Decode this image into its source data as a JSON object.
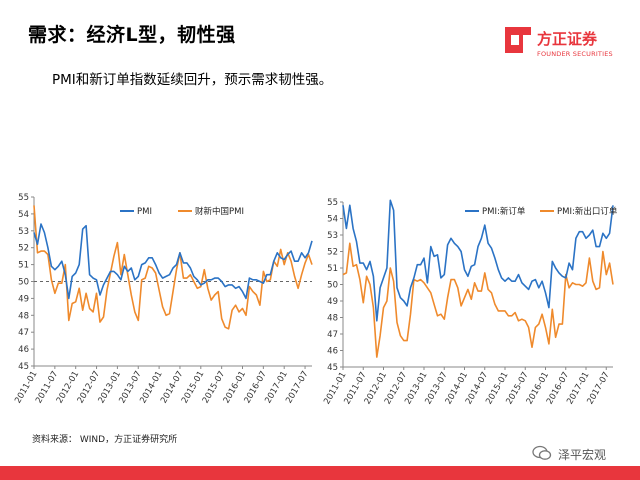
{
  "header": {
    "title": "需求：经济L型，韧性强",
    "subtitle": "PMI和新订单指数延续回升，预示需求韧性强。"
  },
  "logo": {
    "name": "方正证券",
    "subtitle": "FOUNDER SECURITIES",
    "color": "#e8363d"
  },
  "footer": {
    "source": "资料来源： WIND，方正证券研究所",
    "watermark": "泽平宏观"
  },
  "colors": {
    "blue": "#2b73c5",
    "orange": "#ef8a2c",
    "brand_red": "#e8363d"
  },
  "chart_data": [
    {
      "type": "line",
      "title": "",
      "x": [
        "2011-01",
        "2011-02",
        "2011-03",
        "2011-04",
        "2011-05",
        "2011-06",
        "2011-07",
        "2011-08",
        "2011-09",
        "2011-10",
        "2011-11",
        "2011-12",
        "2012-01",
        "2012-02",
        "2012-03",
        "2012-04",
        "2012-05",
        "2012-06",
        "2012-07",
        "2012-08",
        "2012-09",
        "2012-10",
        "2012-11",
        "2012-12",
        "2013-01",
        "2013-02",
        "2013-03",
        "2013-04",
        "2013-05",
        "2013-06",
        "2013-07",
        "2013-08",
        "2013-09",
        "2013-10",
        "2013-11",
        "2013-12",
        "2014-01",
        "2014-02",
        "2014-03",
        "2014-04",
        "2014-05",
        "2014-06",
        "2014-07",
        "2014-08",
        "2014-09",
        "2014-10",
        "2014-11",
        "2014-12",
        "2015-01",
        "2015-02",
        "2015-03",
        "2015-04",
        "2015-05",
        "2015-06",
        "2015-07",
        "2015-08",
        "2015-09",
        "2015-10",
        "2015-11",
        "2015-12",
        "2016-01",
        "2016-02",
        "2016-03",
        "2016-04",
        "2016-05",
        "2016-06",
        "2016-07",
        "2016-08",
        "2016-09",
        "2016-10",
        "2016-11",
        "2016-12",
        "2017-01",
        "2017-02",
        "2017-03",
        "2017-04",
        "2017-05",
        "2017-06",
        "2017-07",
        "2017-08",
        "2017-09"
      ],
      "tick_labels": [
        "2011-01",
        "2011-07",
        "2012-01",
        "2012-07",
        "2013-01",
        "2013-07",
        "2014-01",
        "2014-07",
        "2015-01",
        "2015-07",
        "2016-01",
        "2016-07",
        "2017-01",
        "2017-07"
      ],
      "ylim": [
        45,
        55
      ],
      "yticks": [
        45,
        46,
        47,
        48,
        49,
        50,
        51,
        52,
        53,
        54,
        55
      ],
      "reference_line": 50,
      "series": [
        {
          "name": "PMI",
          "color": "#2b73c5",
          "values": [
            52.9,
            52.2,
            53.4,
            52.9,
            52.0,
            50.9,
            50.7,
            50.9,
            51.2,
            50.4,
            49.0,
            50.3,
            50.5,
            51.0,
            53.1,
            53.3,
            50.4,
            50.2,
            50.1,
            49.2,
            49.8,
            50.2,
            50.6,
            50.6,
            50.4,
            50.1,
            50.9,
            50.6,
            50.8,
            50.1,
            50.3,
            51.0,
            51.1,
            51.4,
            51.4,
            51.0,
            50.5,
            50.2,
            50.3,
            50.4,
            50.8,
            51.0,
            51.7,
            51.1,
            51.1,
            50.8,
            50.3,
            50.1,
            49.8,
            49.9,
            50.1,
            50.1,
            50.2,
            50.2,
            50.0,
            49.7,
            49.8,
            49.8,
            49.6,
            49.7,
            49.4,
            49.0,
            50.2,
            50.1,
            50.1,
            50.0,
            49.9,
            50.4,
            50.4,
            51.2,
            51.7,
            51.4,
            51.3,
            51.6,
            51.8,
            51.2,
            51.2,
            51.7,
            51.4,
            51.7,
            52.4
          ]
        },
        {
          "name": "财新中国PMI",
          "color": "#ef8a2c",
          "values": [
            54.5,
            51.7,
            51.8,
            51.8,
            51.6,
            50.1,
            49.3,
            49.9,
            49.9,
            51.0,
            47.7,
            48.7,
            48.8,
            49.6,
            48.3,
            49.3,
            48.4,
            48.2,
            49.3,
            47.6,
            47.9,
            49.5,
            50.5,
            51.5,
            52.3,
            50.4,
            51.6,
            50.4,
            49.2,
            48.2,
            47.7,
            50.1,
            50.2,
            50.9,
            50.8,
            50.5,
            49.5,
            48.5,
            48.0,
            48.1,
            49.4,
            50.7,
            51.7,
            50.2,
            50.2,
            50.4,
            50.0,
            49.6,
            49.7,
            50.7,
            49.6,
            48.9,
            49.2,
            49.4,
            47.8,
            47.3,
            47.2,
            48.3,
            48.6,
            48.2,
            48.4,
            48.0,
            49.7,
            49.4,
            49.2,
            48.6,
            50.6,
            50.0,
            50.1,
            51.2,
            50.9,
            51.9,
            51.0,
            51.7,
            51.2,
            50.3,
            49.6,
            50.4,
            51.1,
            51.6,
            51.0
          ]
        }
      ]
    },
    {
      "type": "line",
      "title": "",
      "x": [
        "2011-01",
        "2011-02",
        "2011-03",
        "2011-04",
        "2011-05",
        "2011-06",
        "2011-07",
        "2011-08",
        "2011-09",
        "2011-10",
        "2011-11",
        "2011-12",
        "2012-01",
        "2012-02",
        "2012-03",
        "2012-04",
        "2012-05",
        "2012-06",
        "2012-07",
        "2012-08",
        "2012-09",
        "2012-10",
        "2012-11",
        "2012-12",
        "2013-01",
        "2013-02",
        "2013-03",
        "2013-04",
        "2013-05",
        "2013-06",
        "2013-07",
        "2013-08",
        "2013-09",
        "2013-10",
        "2013-11",
        "2013-12",
        "2014-01",
        "2014-02",
        "2014-03",
        "2014-04",
        "2014-05",
        "2014-06",
        "2014-07",
        "2014-08",
        "2014-09",
        "2014-10",
        "2014-11",
        "2014-12",
        "2015-01",
        "2015-02",
        "2015-03",
        "2015-04",
        "2015-05",
        "2015-06",
        "2015-07",
        "2015-08",
        "2015-09",
        "2015-10",
        "2015-11",
        "2015-12",
        "2016-01",
        "2016-02",
        "2016-03",
        "2016-04",
        "2016-05",
        "2016-06",
        "2016-07",
        "2016-08",
        "2016-09",
        "2016-10",
        "2016-11",
        "2016-12",
        "2017-01",
        "2017-02",
        "2017-03",
        "2017-04",
        "2017-05",
        "2017-06",
        "2017-07",
        "2017-08",
        "2017-09"
      ],
      "tick_labels": [
        "2011-01",
        "2011-07",
        "2012-01",
        "2012-07",
        "2013-01",
        "2013-07",
        "2014-01",
        "2014-07",
        "2015-01",
        "2015-07",
        "2016-01",
        "2016-07",
        "2017-01",
        "2017-07"
      ],
      "ylim": [
        45,
        55
      ],
      "yticks": [
        45,
        46,
        47,
        48,
        49,
        50,
        51,
        52,
        53,
        54,
        55
      ],
      "series": [
        {
          "name": "PMI:新订单",
          "color": "#2b73c5",
          "values": [
            54.8,
            53.4,
            54.8,
            53.4,
            52.6,
            51.3,
            51.3,
            50.9,
            51.4,
            50.5,
            47.8,
            49.8,
            50.4,
            51.0,
            55.1,
            54.5,
            49.8,
            49.2,
            49.0,
            48.7,
            49.8,
            50.4,
            51.2,
            51.2,
            51.6,
            50.1,
            52.3,
            51.7,
            51.8,
            50.4,
            50.6,
            52.4,
            52.8,
            52.5,
            52.3,
            52.0,
            50.9,
            50.5,
            51.1,
            51.2,
            52.3,
            52.8,
            53.6,
            52.5,
            52.2,
            51.6,
            50.9,
            50.4,
            50.2,
            50.4,
            50.2,
            50.2,
            50.6,
            50.1,
            49.9,
            49.7,
            50.2,
            50.3,
            49.8,
            50.2,
            49.5,
            48.6,
            51.4,
            51.0,
            50.7,
            50.5,
            50.4,
            51.3,
            50.9,
            52.8,
            53.2,
            53.2,
            52.8,
            53.0,
            53.3,
            52.3,
            52.3,
            53.1,
            52.8,
            53.1,
            54.8
          ]
        },
        {
          "name": "PMI:新出口订单",
          "color": "#ef8a2c",
          "values": [
            50.6,
            50.7,
            52.5,
            51.1,
            51.2,
            50.3,
            48.9,
            50.5,
            50.0,
            48.6,
            45.6,
            46.9,
            48.6,
            49.0,
            51.0,
            50.2,
            47.7,
            46.9,
            46.6,
            46.6,
            48.2,
            50.3,
            50.2,
            50.3,
            50.1,
            49.8,
            49.5,
            48.8,
            48.1,
            48.2,
            47.9,
            49.2,
            50.3,
            50.3,
            49.8,
            48.7,
            49.2,
            49.7,
            49.1,
            50.1,
            49.6,
            49.6,
            50.7,
            49.7,
            49.5,
            48.8,
            48.4,
            48.4,
            48.4,
            48.1,
            48.1,
            48.3,
            47.8,
            47.9,
            47.8,
            47.4,
            46.2,
            47.4,
            47.6,
            48.2,
            47.4,
            46.4,
            48.5,
            46.8,
            47.6,
            47.6,
            50.6,
            49.8,
            50.1,
            50.0,
            50.0,
            49.9,
            50.1,
            51.6,
            50.2,
            49.7,
            49.8,
            52.0,
            50.6,
            51.3,
            50.0
          ]
        }
      ]
    }
  ]
}
